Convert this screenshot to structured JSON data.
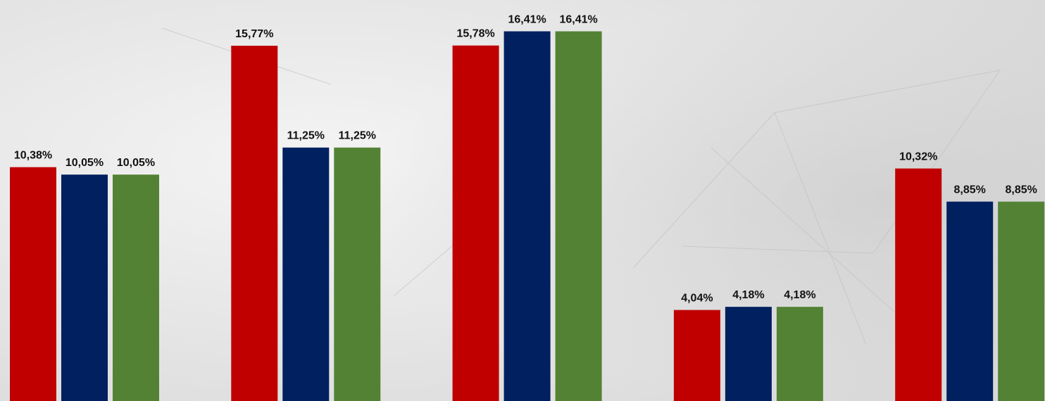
{
  "chart_data": {
    "type": "bar",
    "categories": [
      null,
      null,
      null,
      null,
      null
    ],
    "series": [
      {
        "color": "#c00000",
        "values": [
          10.38,
          15.77,
          15.78,
          4.04,
          10.32
        ],
        "value_labels": [
          "10,38%",
          "15,77%",
          "15,78%",
          "4,04%",
          "10,32%"
        ]
      },
      {
        "color": "#002060",
        "values": [
          10.05,
          11.25,
          16.41,
          4.18,
          8.85
        ],
        "value_labels": [
          "10,05%",
          "11,25%",
          "16,41%",
          "4,18%",
          "8,85%"
        ]
      },
      {
        "color": "#548235",
        "values": [
          10.05,
          11.25,
          16.41,
          4.18,
          8.85
        ],
        "value_labels": [
          "10,05%",
          "11,25%",
          "16,41%",
          "4,18%",
          "8,85%"
        ]
      }
    ],
    "ylim": [
      0,
      17.8
    ]
  }
}
